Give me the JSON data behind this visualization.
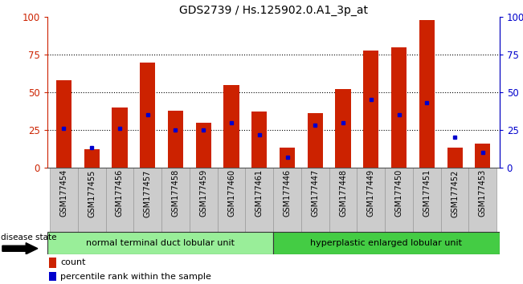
{
  "title": "GDS2739 / Hs.125902.0.A1_3p_at",
  "samples": [
    "GSM177454",
    "GSM177455",
    "GSM177456",
    "GSM177457",
    "GSM177458",
    "GSM177459",
    "GSM177460",
    "GSM177461",
    "GSM177446",
    "GSM177447",
    "GSM177448",
    "GSM177449",
    "GSM177450",
    "GSM177451",
    "GSM177452",
    "GSM177453"
  ],
  "count_values": [
    58,
    12,
    40,
    70,
    38,
    30,
    55,
    37,
    13,
    36,
    52,
    78,
    80,
    98,
    13,
    16
  ],
  "percentile_values": [
    26,
    13,
    26,
    35,
    25,
    25,
    30,
    22,
    7,
    28,
    30,
    45,
    35,
    43,
    20,
    10
  ],
  "group1_label": "normal terminal duct lobular unit",
  "group2_label": "hyperplastic enlarged lobular unit",
  "group1_count": 8,
  "group2_count": 8,
  "bar_color": "#cc2200",
  "dot_color": "#0000cc",
  "ylim": [
    0,
    100
  ],
  "yticks": [
    0,
    25,
    50,
    75,
    100
  ],
  "ytick_labels_left": [
    "0",
    "25",
    "50",
    "75",
    "100"
  ],
  "ytick_labels_right": [
    "0",
    "25",
    "50",
    "75",
    "100%"
  ],
  "grid_color": "black",
  "left_yaxis_color": "#cc2200",
  "right_yaxis_color": "#0000cc",
  "bar_width": 0.55,
  "background_color": "#ffffff",
  "group1_color": "#99ee99",
  "group2_color": "#44cc44",
  "tick_area_color": "#cccccc",
  "disease_state_label": "disease state",
  "legend_count_label": "count",
  "legend_percentile_label": "percentile rank within the sample"
}
